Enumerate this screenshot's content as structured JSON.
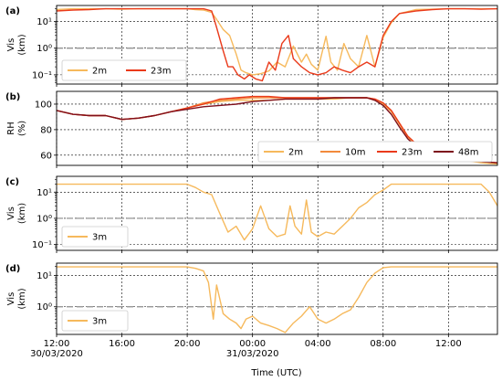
{
  "x_axis": {
    "label": "Time (UTC)",
    "ticks": [
      {
        "t": 0,
        "lines": [
          "12:00",
          "30/03/2020"
        ]
      },
      {
        "t": 4,
        "lines": [
          "16:00"
        ]
      },
      {
        "t": 8,
        "lines": [
          "20:00"
        ]
      },
      {
        "t": 12,
        "lines": [
          "00:00",
          "31/03/2020"
        ]
      },
      {
        "t": 16,
        "lines": [
          "04:00"
        ]
      },
      {
        "t": 20,
        "lines": [
          "08:00"
        ]
      },
      {
        "t": 24,
        "lines": [
          "12:00"
        ]
      }
    ]
  },
  "chart_data": [
    {
      "panel": "(a)",
      "type": "line",
      "ylabel_lines": [
        "Vis",
        "(km)"
      ],
      "yscale": "log",
      "ylim": [
        0.045,
        40
      ],
      "yticks": [
        0.1,
        1,
        10
      ],
      "ytick_labels": [
        "10⁻¹",
        "10⁰",
        "10¹"
      ],
      "xlim": [
        0,
        27
      ],
      "ref_line": 1,
      "legend_position": "lower-left",
      "legend_cols": 2,
      "series": [
        {
          "name": "2m",
          "color": "#f6b95c",
          "x": [
            0,
            1,
            2,
            3,
            4,
            5,
            6,
            7,
            8,
            8.5,
            9,
            9.5,
            9.8,
            10.2,
            10.6,
            11,
            11.3,
            11.6,
            12,
            12.5,
            13,
            13.5,
            14,
            14.5,
            15,
            15.3,
            15.6,
            16,
            16.5,
            16.8,
            17.2,
            17.6,
            18,
            18.5,
            19,
            19.5,
            20,
            20.5,
            21,
            22,
            23,
            24,
            25,
            26,
            27
          ],
          "y": [
            28,
            30,
            30,
            30,
            29,
            30,
            30,
            30,
            30,
            28,
            27,
            22,
            12,
            5,
            3,
            0.6,
            0.15,
            0.12,
            0.1,
            0.11,
            0.14,
            0.3,
            0.2,
            1.2,
            0.3,
            0.6,
            0.25,
            0.15,
            2.8,
            0.3,
            0.15,
            1.5,
            0.4,
            0.2,
            3,
            0.2,
            2.5,
            9,
            20,
            28,
            29,
            30,
            30,
            30,
            30
          ]
        },
        {
          "name": "23m",
          "color": "#ea3a1b",
          "x": [
            0,
            1,
            2,
            3,
            4,
            5,
            6,
            7,
            8,
            8.5,
            9,
            9.5,
            9.8,
            10.2,
            10.5,
            10.8,
            11.1,
            11.5,
            11.8,
            12.2,
            12.6,
            13,
            13.4,
            13.8,
            14.2,
            14.5,
            15,
            15.5,
            16,
            16.5,
            17,
            17.5,
            18,
            18.5,
            19,
            19.5,
            20,
            20.5,
            21,
            22,
            23,
            24,
            25,
            26,
            27
          ],
          "y": [
            25,
            27,
            28,
            30,
            30,
            30,
            30,
            30,
            30,
            30,
            30,
            25,
            6,
            0.8,
            0.2,
            0.2,
            0.1,
            0.07,
            0.1,
            0.07,
            0.06,
            0.3,
            0.15,
            1.5,
            3,
            0.4,
            0.2,
            0.12,
            0.1,
            0.12,
            0.2,
            0.15,
            0.12,
            0.2,
            0.3,
            0.2,
            3,
            10,
            20,
            25,
            28,
            30,
            30,
            29,
            30
          ]
        }
      ]
    },
    {
      "panel": "(b)",
      "type": "line",
      "ylabel_lines": [
        "RH",
        "(%)"
      ],
      "yscale": "linear",
      "ylim": [
        52,
        110
      ],
      "yticks": [
        60,
        80,
        100
      ],
      "ytick_labels": [
        "60",
        "80",
        "100"
      ],
      "xlim": [
        0,
        27
      ],
      "legend_position": "lower-right",
      "legend_cols": 4,
      "series": [
        {
          "name": "2m",
          "color": "#f6b95c",
          "x": [
            0,
            1,
            2,
            3,
            4,
            5,
            6,
            7,
            8,
            9,
            10,
            11,
            12,
            13,
            14,
            15,
            16,
            17,
            18,
            19,
            19.5,
            20,
            20.5,
            21,
            21.5,
            22,
            23,
            24,
            25,
            26,
            27
          ],
          "y": [
            95,
            92,
            91,
            91,
            88,
            89,
            91,
            94,
            97,
            100,
            102,
            103,
            103,
            103,
            104,
            104,
            104,
            104,
            105,
            105,
            103,
            100,
            94,
            84,
            74,
            68,
            62,
            58,
            56,
            54,
            53
          ]
        },
        {
          "name": "10m",
          "color": "#f28a3c",
          "x": [
            0,
            1,
            2,
            3,
            4,
            5,
            6,
            7,
            8,
            9,
            10,
            11,
            12,
            13,
            14,
            15,
            16,
            17,
            18,
            19,
            19.5,
            20,
            20.5,
            21,
            21.5,
            22,
            23,
            24,
            25,
            26,
            27
          ],
          "y": [
            95,
            92,
            91,
            91,
            88,
            89,
            91,
            94,
            97,
            101,
            103,
            104,
            105,
            105,
            105,
            105,
            105,
            105,
            105,
            105,
            104,
            101,
            95,
            85,
            75,
            69,
            63,
            59,
            57,
            55,
            54
          ]
        },
        {
          "name": "23m",
          "color": "#ea3a1b",
          "x": [
            0,
            1,
            2,
            3,
            4,
            5,
            6,
            7,
            8,
            9,
            10,
            11,
            12,
            13,
            14,
            15,
            16,
            17,
            18,
            19,
            19.5,
            20,
            20.5,
            21,
            21.5,
            22,
            23,
            24,
            25,
            26,
            27
          ],
          "y": [
            95,
            92,
            91,
            91,
            88,
            89,
            91,
            94,
            97,
            100,
            104,
            105,
            106,
            106,
            105,
            105,
            105,
            105,
            105,
            105,
            104,
            101,
            95,
            85,
            75,
            69,
            63,
            59,
            57,
            55,
            54
          ]
        },
        {
          "name": "48m",
          "color": "#7d0f1c",
          "x": [
            0,
            1,
            2,
            3,
            4,
            5,
            6,
            7,
            8,
            9,
            10,
            11,
            12,
            13,
            14,
            15,
            16,
            17,
            18,
            19,
            19.5,
            20,
            20.5,
            21,
            21.5,
            22,
            23,
            24,
            25,
            26,
            27
          ],
          "y": [
            95,
            92,
            91,
            91,
            88,
            89,
            91,
            94,
            96,
            98,
            99,
            100,
            102,
            103,
            104,
            104,
            104,
            105,
            105,
            105,
            103,
            99,
            92,
            82,
            73,
            67,
            62,
            58,
            56,
            55,
            54
          ]
        }
      ]
    },
    {
      "panel": "(c)",
      "type": "line",
      "ylabel_lines": [
        "Vis",
        "(km)"
      ],
      "yscale": "log",
      "ylim": [
        0.06,
        40
      ],
      "yticks": [
        0.1,
        1,
        10
      ],
      "ytick_labels": [
        "10⁻¹",
        "10⁰",
        "10¹"
      ],
      "xlim": [
        0,
        27
      ],
      "ref_line": 1,
      "legend_position": "lower-left",
      "legend_cols": 1,
      "series": [
        {
          "name": "3m",
          "color": "#f6b95c",
          "x": [
            0,
            1,
            2,
            3,
            4,
            5,
            6,
            7,
            8,
            8.5,
            9,
            9.5,
            10,
            10.5,
            11,
            11.5,
            12,
            12.5,
            13,
            13.5,
            14,
            14.3,
            14.6,
            15,
            15.3,
            15.6,
            16,
            16.5,
            17,
            17.5,
            18,
            18.5,
            19,
            19.5,
            20,
            20.5,
            21,
            22,
            23,
            24,
            25,
            26,
            26.5,
            27
          ],
          "y": [
            20,
            20,
            20,
            20,
            20,
            20,
            20,
            20,
            20,
            15,
            10,
            8,
            1.5,
            0.3,
            0.5,
            0.15,
            0.4,
            3,
            0.4,
            0.2,
            0.25,
            3,
            0.5,
            0.25,
            5,
            0.3,
            0.2,
            0.3,
            0.25,
            0.5,
            1,
            2.5,
            4,
            8,
            12,
            20,
            20,
            20,
            20,
            20,
            20,
            20,
            10,
            3
          ]
        }
      ]
    },
    {
      "panel": "(d)",
      "type": "line",
      "ylabel_lines": [
        "Vis",
        "(km)"
      ],
      "yscale": "log",
      "ylim": [
        0.13,
        25
      ],
      "yticks": [
        1,
        10
      ],
      "ytick_labels": [
        "10⁰",
        "10¹"
      ],
      "xlim": [
        0,
        27
      ],
      "ref_line": 1,
      "legend_position": "lower-left",
      "legend_cols": 1,
      "series": [
        {
          "name": "3m",
          "color": "#f6b95c",
          "x": [
            0,
            1,
            2,
            3,
            4,
            5,
            6,
            7,
            8,
            8.5,
            9,
            9.3,
            9.6,
            9.8,
            10.2,
            10.6,
            11,
            11.3,
            11.6,
            12,
            12.5,
            13,
            13.5,
            14,
            14.5,
            15,
            15.5,
            16,
            16.5,
            17,
            17.5,
            18,
            18.5,
            19,
            19.5,
            20,
            20.5,
            21,
            22,
            23,
            24,
            25,
            26,
            27
          ],
          "y": [
            19,
            19,
            19,
            19,
            19,
            19,
            19,
            19,
            19,
            17,
            14,
            6,
            0.4,
            5,
            0.6,
            0.4,
            0.3,
            0.2,
            0.4,
            0.5,
            0.3,
            0.25,
            0.2,
            0.15,
            0.3,
            0.5,
            1,
            0.4,
            0.3,
            0.4,
            0.6,
            0.8,
            2,
            6,
            12,
            18,
            19,
            19,
            19,
            19,
            19,
            19,
            19,
            19
          ]
        }
      ]
    }
  ]
}
